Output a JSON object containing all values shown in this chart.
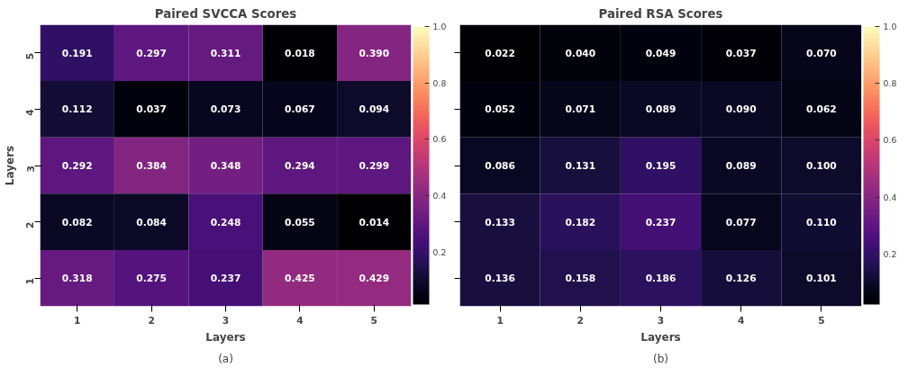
{
  "chart_data": [
    {
      "type": "heatmap",
      "title": "Paired SVCCA Scores",
      "xlabel": "Layers",
      "ylabel": "Layers",
      "annotations": [
        "(a)"
      ],
      "categories": [
        "1",
        "2",
        "3",
        "4",
        "5"
      ],
      "y_categories": [
        "5",
        "4",
        "3",
        "2",
        "1"
      ],
      "cells": [
        [
          0.191,
          0.297,
          0.311,
          0.018,
          0.39
        ],
        [
          0.112,
          0.037,
          0.073,
          0.067,
          0.094
        ],
        [
          0.292,
          0.384,
          0.348,
          0.294,
          0.299
        ],
        [
          0.082,
          0.084,
          0.248,
          0.055,
          0.014
        ],
        [
          0.318,
          0.275,
          0.237,
          0.425,
          0.429
        ]
      ],
      "cell_labels": [
        [
          "0.191",
          "0.297",
          "0.311",
          "0.018",
          "0.390"
        ],
        [
          "0.112",
          "0.037",
          "0.073",
          "0.067",
          "0.094"
        ],
        [
          "0.292",
          "0.384",
          "0.348",
          "0.294",
          "0.299"
        ],
        [
          "0.082",
          "0.084",
          "0.248",
          "0.055",
          "0.014"
        ],
        [
          "0.318",
          "0.275",
          "0.237",
          "0.425",
          "0.429"
        ]
      ],
      "clim": [
        0.014,
        1.0
      ],
      "cticks": [
        0.2,
        0.4,
        0.6,
        0.8,
        {
          "value": 1.0,
          "label": "1.0"
        }
      ]
    },
    {
      "type": "heatmap",
      "title": "Paired RSA Scores",
      "xlabel": "Layers",
      "annotations": [
        "(b)"
      ],
      "tick_labels": "x",
      "categories": [
        "1",
        "2",
        "3",
        "4",
        "5"
      ],
      "y_categories": [
        "5",
        "4",
        "3",
        "2",
        "1"
      ],
      "cells": [
        [
          0.022,
          0.04,
          0.049,
          0.037,
          0.07
        ],
        [
          0.052,
          0.071,
          0.089,
          0.09,
          0.062
        ],
        [
          0.086,
          0.131,
          0.195,
          0.089,
          0.1
        ],
        [
          0.133,
          0.182,
          0.237,
          0.077,
          0.11
        ],
        [
          0.136,
          0.158,
          0.186,
          0.126,
          0.101
        ]
      ],
      "cell_labels": [
        [
          "0.022",
          "0.040",
          "0.049",
          "0.037",
          "0.070"
        ],
        [
          "0.052",
          "0.071",
          "0.089",
          "0.090",
          "0.062"
        ],
        [
          "0.086",
          "0.131",
          "0.195",
          "0.089",
          "0.100"
        ],
        [
          "0.133",
          "0.182",
          "0.237",
          "0.077",
          "0.110"
        ],
        [
          "0.136",
          "0.158",
          "0.186",
          "0.126",
          "0.101"
        ]
      ],
      "clim": [
        0.022,
        1.0
      ],
      "cticks": [
        0.2,
        0.4,
        0.6,
        0.8,
        {
          "value": 1.0,
          "label": "1.0"
        }
      ]
    }
  ]
}
